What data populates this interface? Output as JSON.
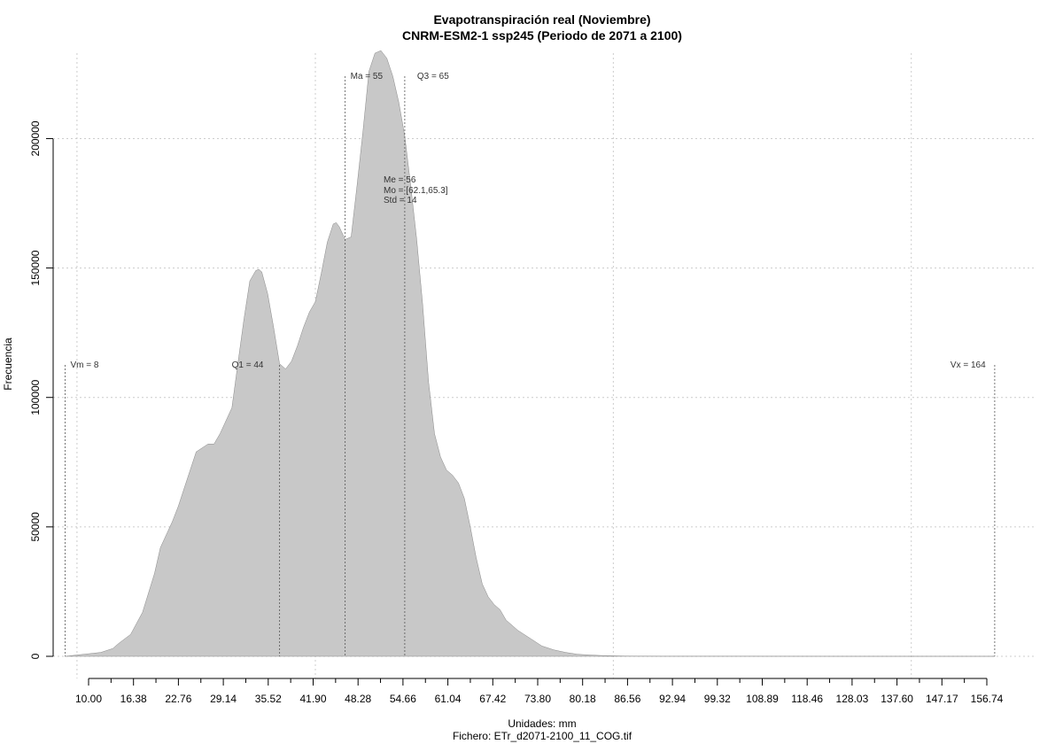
{
  "chart_data": {
    "type": "area",
    "title": "Evapotranspiración real (Noviembre)",
    "subtitle": "CNRM-ESM2-1 ssp245 (Periodo de 2071 a 2100)",
    "xlabel": "Unidades: mm",
    "file_label": "Fichero: ETr_d2071-2100_11_COG.tif",
    "ylabel": "Frecuencia",
    "xlim": [
      6,
      171
    ],
    "ylim": [
      0,
      233000
    ],
    "grid": true,
    "fill_color": "#c8c8c8",
    "line_color": "#888888",
    "x_ticks": [
      "10.00",
      "16.38",
      "22.76",
      "29.14",
      "35.52",
      "41.90",
      "48.28",
      "54.66",
      "61.04",
      "67.42",
      "73.80",
      "80.18",
      "86.56",
      "92.94",
      "99.32",
      "108.89",
      "118.46",
      "128.03",
      "137.60",
      "147.17",
      "156.74"
    ],
    "y_ticks": [
      "0",
      "50000",
      "100000",
      "150000",
      "200000"
    ],
    "series": [
      {
        "x": [
          8,
          10,
          12,
          14,
          16,
          17,
          19,
          21,
          23,
          24,
          26,
          27,
          28,
          30,
          32,
          33,
          34,
          36,
          37,
          38,
          39,
          40,
          40.5,
          41,
          42,
          43,
          44,
          45,
          46,
          47,
          48,
          49,
          50,
          51,
          52,
          53,
          53.5,
          54,
          55,
          56,
          57,
          58,
          59,
          60,
          61,
          62,
          63,
          64,
          65,
          66,
          67,
          68,
          69,
          70,
          71,
          72,
          73,
          74,
          75,
          76,
          77,
          78,
          79,
          80,
          81,
          82,
          84,
          86,
          88,
          90,
          92,
          94,
          96,
          98,
          100,
          102,
          104,
          106,
          108,
          120,
          140,
          160,
          164
        ],
        "y": [
          0,
          500,
          1000,
          1500,
          3000,
          5000,
          8500,
          17000,
          32000,
          42000,
          52000,
          58000,
          65000,
          79000,
          82000,
          82000,
          86000,
          96000,
          113000,
          130000,
          145000,
          149000,
          149500,
          148500,
          140000,
          127000,
          113000,
          111000,
          114000,
          120000,
          127000,
          133000,
          137000,
          148000,
          160000,
          167000,
          167500,
          166000,
          161000,
          162000,
          182000,
          203000,
          226000,
          233000,
          234000,
          231000,
          224000,
          214000,
          201000,
          182000,
          161000,
          136000,
          106000,
          86000,
          77000,
          72000,
          70000,
          67000,
          61000,
          50000,
          38000,
          28000,
          23000,
          20000,
          18000,
          14000,
          10000,
          7000,
          4000,
          2500,
          1500,
          800,
          500,
          300,
          200,
          100,
          80,
          60,
          40,
          20,
          5,
          1,
          0
        ]
      }
    ],
    "annotations": [
      {
        "label": "Vm = 8",
        "x": 8,
        "type": "min"
      },
      {
        "label": "Q1 = 44",
        "x": 44,
        "type": "q1"
      },
      {
        "label": "Ma = 55",
        "x": 55,
        "type": "mean"
      },
      {
        "label": "Q3 = 65",
        "x": 65,
        "type": "q3"
      },
      {
        "label": "Vx = 164",
        "x": 164,
        "type": "max"
      }
    ],
    "stats": [
      "Me = 56",
      "Mo = [62.1,65.3]",
      "Std = 14"
    ]
  }
}
